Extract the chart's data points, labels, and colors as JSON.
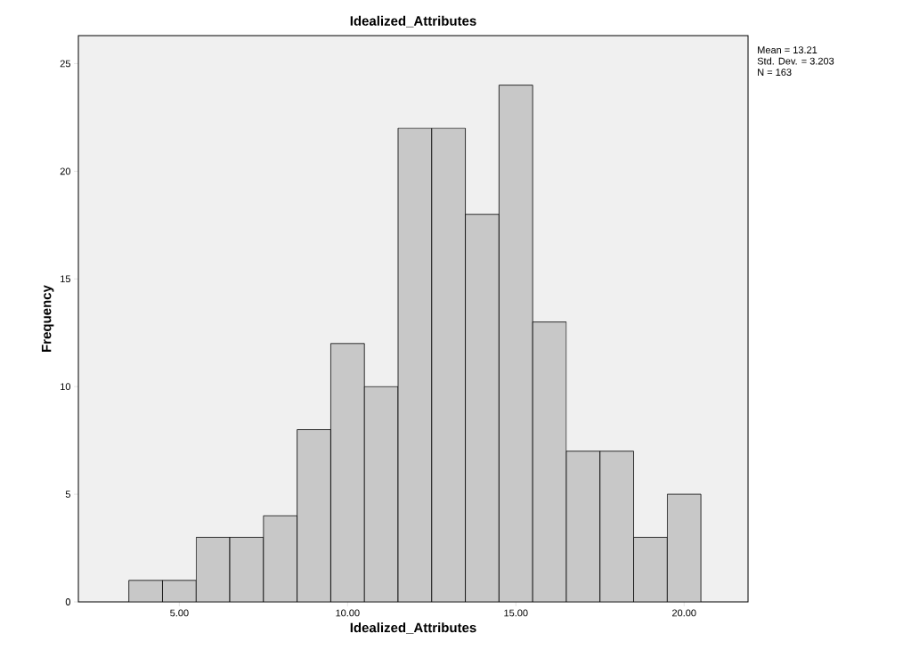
{
  "chart_data": {
    "type": "histogram",
    "title": "Idealized_Attributes",
    "xlabel": "Idealized_Attributes",
    "ylabel": "Frequency",
    "bins": [
      3.5,
      4.5,
      5.5,
      6.5,
      7.5,
      8.5,
      9.5,
      10.5,
      11.5,
      12.5,
      13.5,
      14.5,
      15.5,
      16.5,
      17.5,
      18.5,
      19.5,
      20.5
    ],
    "values": [
      1,
      1,
      3,
      3,
      4,
      8,
      12,
      10,
      22,
      22,
      18,
      24,
      13,
      7,
      7,
      3,
      5
    ],
    "color": "#c8c8c8",
    "xlim": [
      2,
      21.9
    ],
    "ylim": [
      0,
      26.3
    ],
    "xticks": [
      {
        "value": 5,
        "label": "5.00"
      },
      {
        "value": 10,
        "label": "10.00"
      },
      {
        "value": 15,
        "label": "15.00"
      },
      {
        "value": 20,
        "label": "20.00"
      }
    ],
    "yticks": [
      0,
      5,
      10,
      15,
      20,
      25
    ],
    "grid": false,
    "annotations": [
      "Mean = 13.21",
      "Std. Dev. = 3.203",
      "N = 163"
    ]
  }
}
